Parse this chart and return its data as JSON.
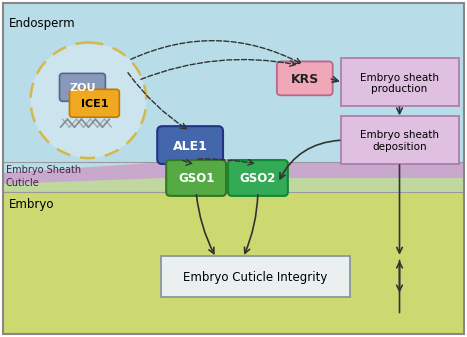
{
  "fig_width": 4.67,
  "fig_height": 3.37,
  "bg_endosperm": "#b8dde8",
  "bg_embryo_sheath": "#c8a8cc",
  "bg_cuticle_strip": "#c8d8a8",
  "bg_embryo": "#ccd870",
  "endosperm_label": "Endosperm",
  "embryo_label": "Embryo",
  "embryo_sheath_label": "Embryo Sheath\nCuticle",
  "zou_label": "ZOU",
  "ice1_label": "ICE1",
  "ale1_label": "ALE1",
  "krs_label": "KRS",
  "gso1_label": "GSO1",
  "gso2_label": "GSO2",
  "sheath_prod_label": "Embryo sheath\nproduction",
  "sheath_dep_label": "Embryo sheath\ndeposition",
  "eci_label": "Embryo Cuticle Integrity",
  "cell_fill": "#cce4ee",
  "cell_edge": "#d4b84a",
  "zou_fill": "#8899bb",
  "zou_edge": "#556688",
  "ice1_fill": "#f0a820",
  "ice1_edge": "#c07800",
  "ale1_fill": "#4466aa",
  "ale1_edge": "#223388",
  "krs_fill": "#f0a8b8",
  "krs_edge": "#bb6688",
  "gso1_fill": "#55aa44",
  "gso1_edge": "#337722",
  "gso2_fill": "#33aa55",
  "gso2_edge": "#118833",
  "sheath_box_fill": "#e0c0e0",
  "sheath_box_edge": "#aa77aa",
  "eci_fill": "#eaf0f0",
  "eci_edge": "#889999",
  "arrow_color": "#333333",
  "dna_color": "#888888"
}
